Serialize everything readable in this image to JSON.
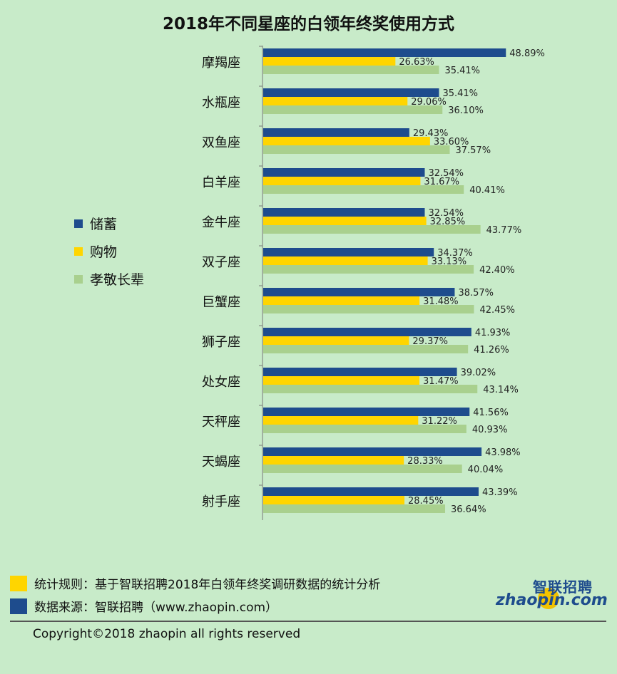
{
  "title": "2018年不同星座的白领年终奖使用方式",
  "legend": [
    {
      "label": "储蓄",
      "color": "#1e4c8d"
    },
    {
      "label": "购物",
      "color": "#ffd500"
    },
    {
      "label": "孝敬长辈",
      "color": "#a9d08e"
    }
  ],
  "chart_data": {
    "type": "bar",
    "orientation": "horizontal",
    "categories": [
      "摩羯座",
      "水瓶座",
      "双鱼座",
      "白羊座",
      "金牛座",
      "双子座",
      "巨蟹座",
      "狮子座",
      "处女座",
      "天秤座",
      "天蝎座",
      "射手座"
    ],
    "series": [
      {
        "name": "储蓄",
        "color": "#1e4c8d",
        "values": [
          48.89,
          35.41,
          29.43,
          32.54,
          32.54,
          34.37,
          38.57,
          41.93,
          39.02,
          41.56,
          43.98,
          43.39
        ]
      },
      {
        "name": "购物",
        "color": "#ffd500",
        "values": [
          26.63,
          29.06,
          33.6,
          31.67,
          32.85,
          33.13,
          31.48,
          29.37,
          31.47,
          31.22,
          28.33,
          28.45
        ]
      },
      {
        "name": "孝敬长辈",
        "color": "#a9d08e",
        "values": [
          35.41,
          36.1,
          37.57,
          40.41,
          43.77,
          42.4,
          42.45,
          41.26,
          43.14,
          40.93,
          40.04,
          36.64
        ]
      }
    ],
    "value_suffix": "%",
    "xlim": [
      0,
      50
    ],
    "legend_position": "left",
    "grid": false
  },
  "notes": [
    {
      "text": "统计规则：基于智联招聘2018年白领年终奖调研数据的统计分析",
      "color": "#ffd500"
    },
    {
      "text": "数据来源：智联招聘（www.zhaopin.com）",
      "color": "#1e4c8d"
    }
  ],
  "copyright": "Copyright©2018 zhaopin all rights reserved",
  "logo": {
    "cn": "智联招聘",
    "en": "zhaopin.com"
  }
}
